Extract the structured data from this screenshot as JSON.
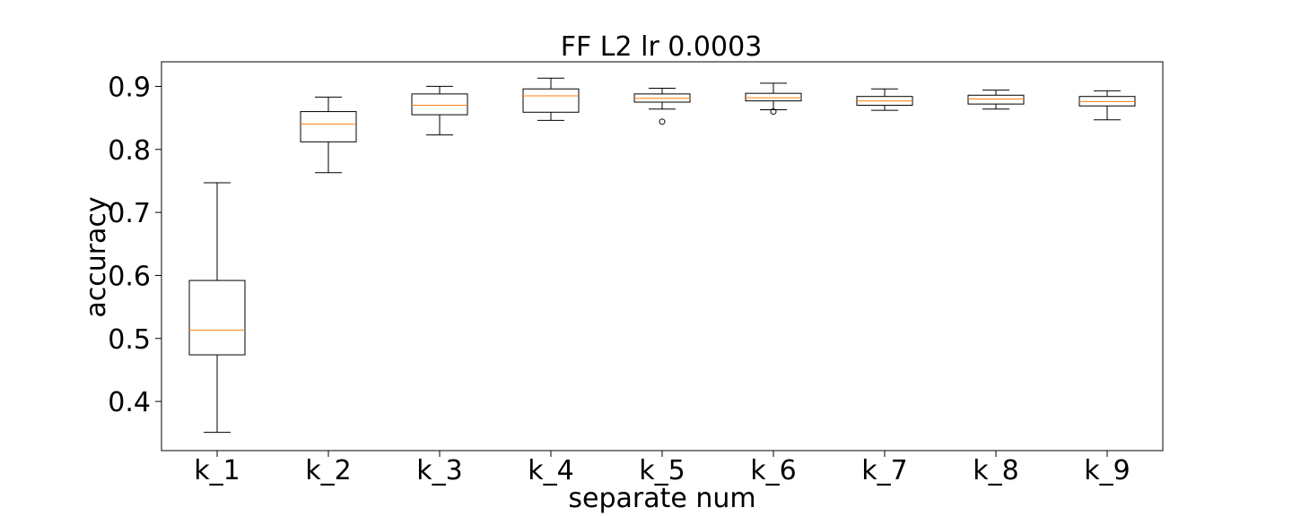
{
  "chart_data": {
    "type": "boxplot",
    "title": "FF L2 lr 0.0003",
    "xlabel": "separate num",
    "ylabel": "accuracy",
    "ylim": [
      0.322,
      0.939
    ],
    "yticks": [
      "0.4",
      "0.5",
      "0.6",
      "0.7",
      "0.8",
      "0.9"
    ],
    "grid": false,
    "colors": {
      "box": "#000000",
      "median": "#ff7f0e"
    },
    "categories": [
      "k_1",
      "k_2",
      "k_3",
      "k_4",
      "k_5",
      "k_6",
      "k_7",
      "k_8",
      "k_9"
    ],
    "boxes": [
      {
        "label": "k_1",
        "whislo": 0.351,
        "q1": 0.474,
        "med": 0.513,
        "q3": 0.592,
        "whishi": 0.747,
        "fliers": []
      },
      {
        "label": "k_2",
        "whislo": 0.763,
        "q1": 0.812,
        "med": 0.84,
        "q3": 0.86,
        "whishi": 0.883,
        "fliers": []
      },
      {
        "label": "k_3",
        "whislo": 0.823,
        "q1": 0.855,
        "med": 0.87,
        "q3": 0.888,
        "whishi": 0.9,
        "fliers": []
      },
      {
        "label": "k_4",
        "whislo": 0.846,
        "q1": 0.859,
        "med": 0.885,
        "q3": 0.896,
        "whishi": 0.913,
        "fliers": []
      },
      {
        "label": "k_5",
        "whislo": 0.864,
        "q1": 0.875,
        "med": 0.881,
        "q3": 0.888,
        "whishi": 0.897,
        "fliers": [
          0.844
        ]
      },
      {
        "label": "k_6",
        "whislo": 0.863,
        "q1": 0.877,
        "med": 0.882,
        "q3": 0.889,
        "whishi": 0.905,
        "fliers": [
          0.86
        ]
      },
      {
        "label": "k_7",
        "whislo": 0.862,
        "q1": 0.87,
        "med": 0.877,
        "q3": 0.884,
        "whishi": 0.896,
        "fliers": []
      },
      {
        "label": "k_8",
        "whislo": 0.864,
        "q1": 0.872,
        "med": 0.88,
        "q3": 0.886,
        "whishi": 0.894,
        "fliers": []
      },
      {
        "label": "k_9",
        "whislo": 0.847,
        "q1": 0.869,
        "med": 0.876,
        "q3": 0.884,
        "whishi": 0.893,
        "fliers": []
      }
    ]
  }
}
